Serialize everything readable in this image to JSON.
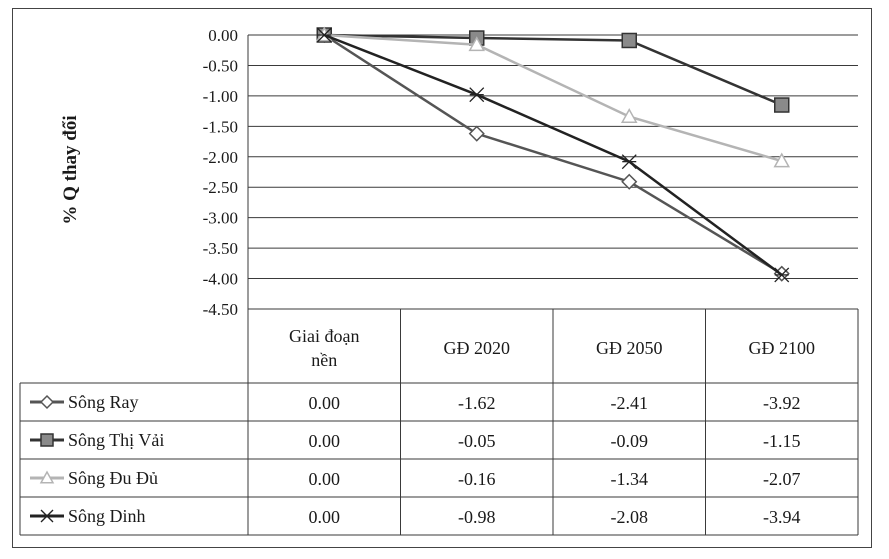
{
  "chart_data": {
    "type": "line",
    "ylabel": "% Q thay đổi",
    "xlabel": "",
    "title": "",
    "ylim": [
      -4.5,
      0
    ],
    "yticks": [
      0,
      -0.5,
      -1,
      -1.5,
      -2,
      -2.5,
      -3,
      -3.5,
      -4,
      -4.5
    ],
    "ytick_labels": [
      "0.00",
      "-0.50",
      "-1.00",
      "-1.50",
      "-2.00",
      "-2.50",
      "-3.00",
      "-3.50",
      "-4.00",
      "-4.50"
    ],
    "categories": [
      "Giai đoạn nền",
      "GĐ 2020",
      "GĐ 2050",
      "GĐ 2100"
    ],
    "grid": true,
    "legend": "data-table-left",
    "series": [
      {
        "name": "Sông Ray",
        "values": [
          0.0,
          -1.62,
          -2.41,
          -3.92
        ],
        "labels": [
          "0.00",
          "-1.62",
          "-2.41",
          "-3.92"
        ],
        "marker": "diamond",
        "color": "#555555",
        "fill": "#ffffff"
      },
      {
        "name": "Sông Thị Vải",
        "values": [
          0.0,
          -0.05,
          -0.09,
          -1.15
        ],
        "labels": [
          "0.00",
          "-0.05",
          "-0.09",
          "-1.15"
        ],
        "marker": "square",
        "color": "#333333",
        "fill": "#8a8a8a"
      },
      {
        "name": "Sông Đu Đủ",
        "values": [
          0.0,
          -0.16,
          -1.34,
          -2.07
        ],
        "labels": [
          "0.00",
          "-0.16",
          "-1.34",
          "-2.07"
        ],
        "marker": "triangle",
        "color": "#b4b4b4",
        "fill": "#ffffff"
      },
      {
        "name": "Sông Dinh",
        "values": [
          0.0,
          -0.98,
          -2.08,
          -3.94
        ],
        "labels": [
          "0.00",
          "-0.98",
          "-2.08",
          "-3.94"
        ],
        "marker": "asterisk",
        "color": "#222222",
        "fill": "none"
      }
    ]
  }
}
